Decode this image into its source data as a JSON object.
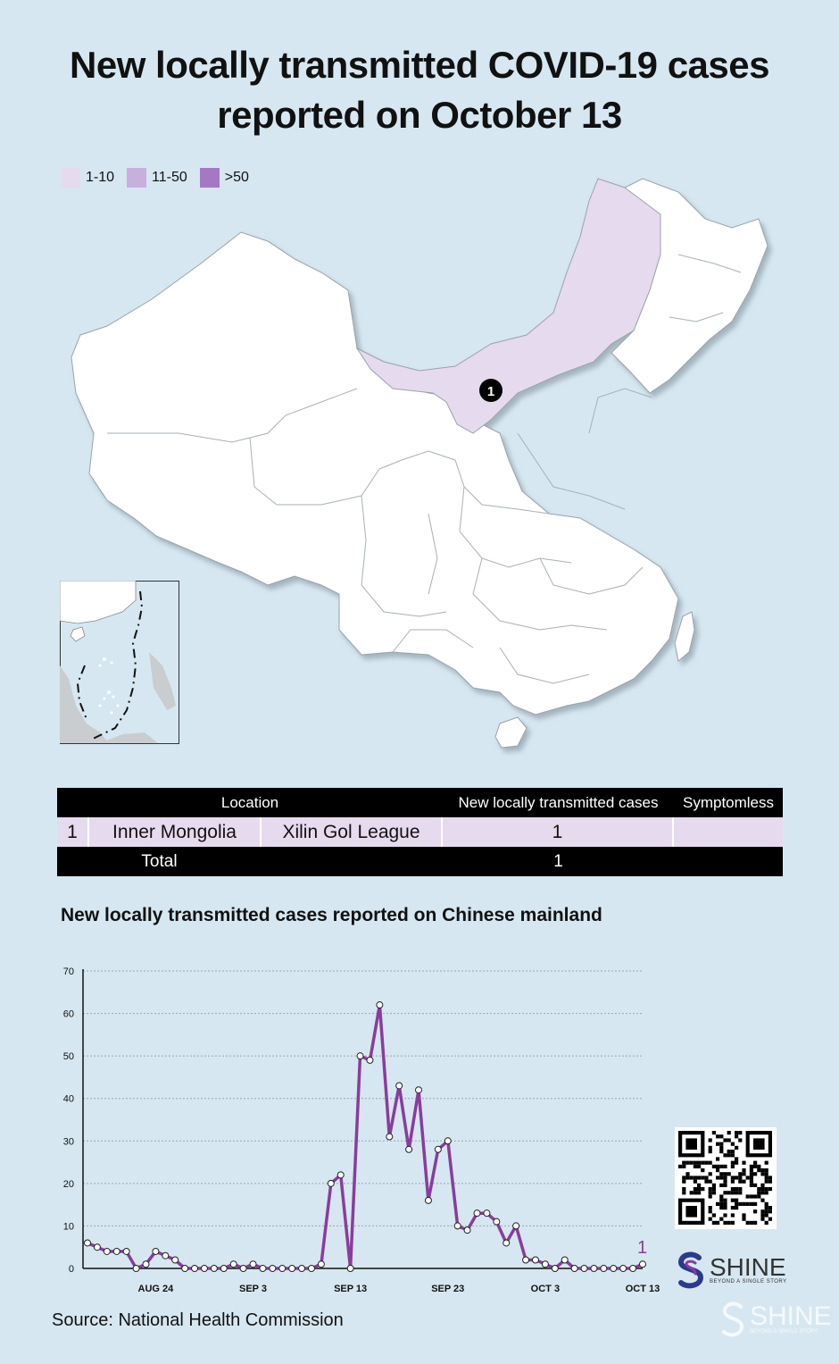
{
  "title": "New locally transmitted COVID-19 cases reported on October 13",
  "legend": [
    {
      "label": "1-10",
      "color": "#e6daee"
    },
    {
      "label": "11-50",
      "color": "#c9b0dc"
    },
    {
      "label": ">50",
      "color": "#a479c2"
    }
  ],
  "map": {
    "marker_label": "1",
    "highlighted_region": "Inner Mongolia",
    "highlight_color": "#e6daee",
    "land_color": "#ffffff",
    "water_color": "#d6e7f1"
  },
  "table": {
    "headers": {
      "location": "Location",
      "cases": "New locally transmitted cases",
      "symptomless": "Symptomless"
    },
    "rows": [
      {
        "index": "1",
        "province": "Inner Mongolia",
        "city": "Xilin Gol League",
        "cases": "1",
        "symptomless": ""
      }
    ],
    "total_label": "Total",
    "total_cases": "1"
  },
  "chart_data": {
    "type": "line",
    "title": "New locally transmitted cases reported on Chinese mainland",
    "x_start": "AUG 17",
    "x_tick_labels": [
      "AUG 24",
      "SEP 3",
      "SEP 13",
      "SEP 23",
      "OCT 3",
      "OCT 13"
    ],
    "x_tick_index": [
      7,
      17,
      27,
      37,
      47,
      57
    ],
    "y_ticks": [
      0,
      10,
      20,
      30,
      40,
      50,
      60,
      70
    ],
    "ylim": [
      0,
      70
    ],
    "grid": true,
    "line_color": "#8a3c9e",
    "end_label": "1",
    "series": [
      {
        "values": [
          6,
          5,
          4,
          4,
          4,
          0,
          1,
          4,
          3,
          2,
          0,
          0,
          0,
          0,
          0,
          1,
          0,
          1,
          0,
          0,
          0,
          0,
          0,
          0,
          1,
          20,
          22,
          0,
          50,
          49,
          62,
          31,
          43,
          28,
          42,
          16,
          28,
          30,
          10,
          9,
          13,
          13,
          11,
          6,
          10,
          2,
          2,
          1,
          0,
          2,
          0,
          0,
          0,
          0,
          0,
          0,
          0,
          1
        ]
      }
    ]
  },
  "source": "Source: National Health Commission",
  "brand": {
    "name": "SHINE",
    "tagline": "BEYOND A SINGLE STORY"
  }
}
